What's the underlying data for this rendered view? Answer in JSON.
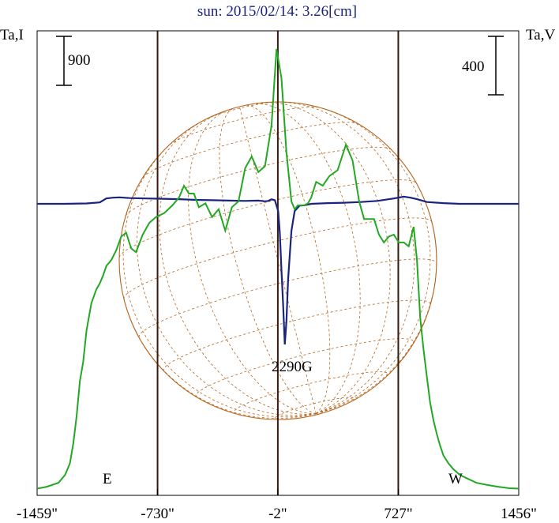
{
  "chart_data": {
    "type": "line",
    "title": "sun: 2015/02/14: 3.26[cm]",
    "left_axis_label": "Ta,I",
    "right_axis_label": "Ta,V",
    "scale_bar_left": "900",
    "scale_bar_right": "400",
    "x_tick_labels": [
      "-1459\"",
      "-730\"",
      "-2\"",
      "727\"",
      "1456\""
    ],
    "x_tick_values": [
      -1459,
      -730,
      -2,
      727,
      1456
    ],
    "xlim": [
      -1459,
      1456
    ],
    "limb_marker_values": [
      -730,
      -2,
      727
    ],
    "limb_labels": {
      "east": "E",
      "west": "W"
    },
    "annotation": {
      "text": "2290G",
      "x": 84
    },
    "colors": {
      "intensity": "#22a822",
      "polarization": "#1a237e",
      "disk": "#b5651d",
      "limb_lines": "#3b1a0e",
      "title": "#1a237e"
    },
    "series": [
      {
        "key": "I",
        "x": [
          -1459,
          -1400,
          -1330,
          -1290,
          -1260,
          -1240,
          -1220,
          -1200,
          -1180,
          -1160,
          -1130,
          -1100,
          -1080,
          -1060,
          -1040,
          -1010,
          -980,
          -950,
          -920,
          -890,
          -860,
          -820,
          -780,
          -740,
          -690,
          -640,
          -600,
          -570,
          -540,
          -510,
          -480,
          -440,
          -400,
          -360,
          -320,
          -280,
          -240,
          -200,
          -160,
          -120,
          -80,
          -40,
          -10,
          20,
          50,
          80,
          100,
          120,
          140,
          160,
          180,
          200,
          230,
          270,
          310,
          360,
          410,
          450,
          490,
          520,
          550,
          580,
          610,
          640,
          670,
          700,
          730,
          760,
          790,
          820,
          840,
          860,
          880,
          900,
          920,
          940,
          960,
          980,
          1000,
          1030,
          1060,
          1100,
          1150,
          1200,
          1260,
          1330,
          1400,
          1456
        ],
        "y": [
          10,
          20,
          40,
          80,
          140,
          240,
          380,
          560,
          660,
          820,
          960,
          1030,
          1060,
          1100,
          1150,
          1180,
          1230,
          1300,
          1320,
          1240,
          1220,
          1310,
          1370,
          1400,
          1420,
          1460,
          1500,
          1560,
          1520,
          1520,
          1450,
          1470,
          1400,
          1440,
          1330,
          1450,
          1480,
          1650,
          1710,
          1630,
          1660,
          1870,
          2260,
          2110,
          1730,
          1480,
          1440,
          1460,
          1460,
          1460,
          1470,
          1500,
          1580,
          1560,
          1610,
          1640,
          1770,
          1690,
          1480,
          1390,
          1390,
          1390,
          1310,
          1270,
          1300,
          1310,
          1270,
          1270,
          1250,
          1350,
          1180,
          880,
          720,
          580,
          450,
          360,
          290,
          230,
          180,
          140,
          110,
          80,
          60,
          40,
          30,
          20,
          12,
          10
        ]
      },
      {
        "key": "V",
        "x": [
          -1459,
          -1300,
          -1160,
          -1080,
          -1040,
          -1000,
          -960,
          -900,
          -800,
          -700,
          -600,
          -500,
          -400,
          -300,
          -200,
          -120,
          -80,
          -60,
          -40,
          -20,
          0,
          10,
          20,
          30,
          40,
          50,
          60,
          80,
          100,
          130,
          160,
          200,
          300,
          400,
          500,
          600,
          700,
          760,
          800,
          840,
          900,
          1000,
          1100,
          1200,
          1300,
          1456
        ],
        "y": [
          0,
          0,
          2,
          8,
          30,
          34,
          36,
          32,
          30,
          28,
          26,
          22,
          20,
          18,
          16,
          18,
          14,
          16,
          25,
          20,
          -40,
          -160,
          -370,
          -560,
          -780,
          -650,
          -420,
          -150,
          -40,
          -10,
          -8,
          0,
          4,
          6,
          10,
          16,
          30,
          40,
          34,
          26,
          10,
          4,
          0,
          0,
          0,
          0
        ]
      }
    ]
  }
}
